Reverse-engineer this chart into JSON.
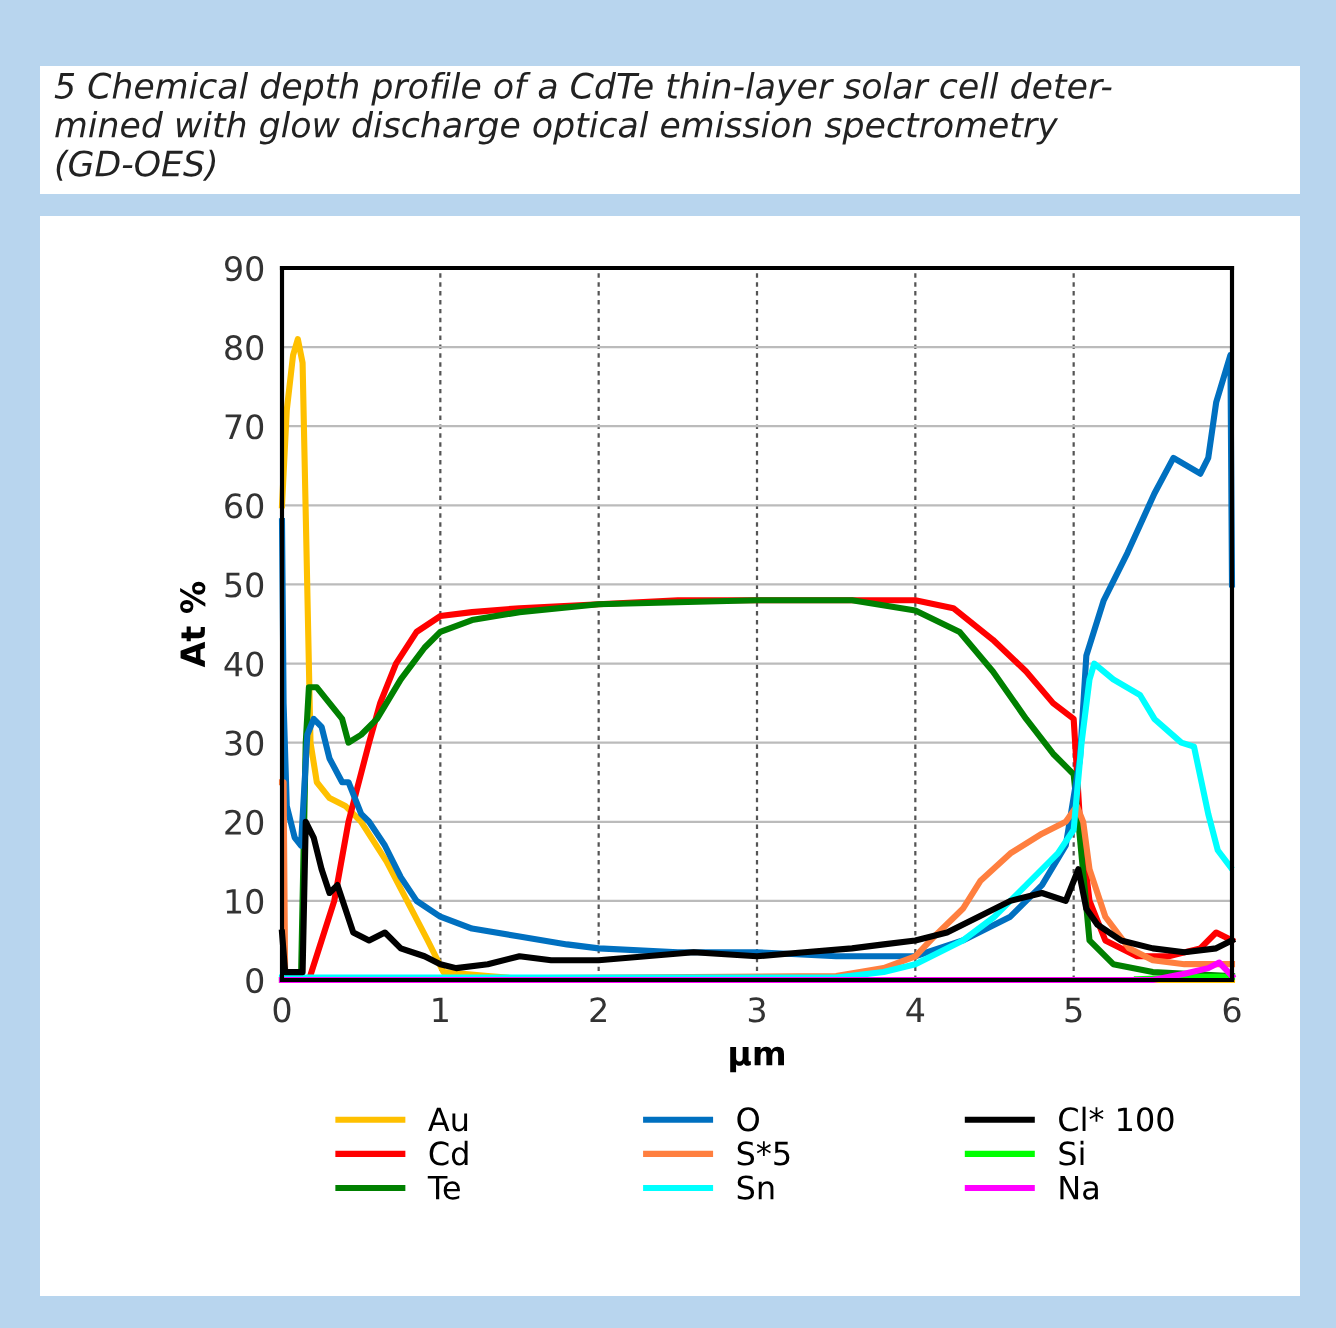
{
  "chart_data": {
    "type": "line",
    "title": "5 Chemical depth profile of a CdTe thin-layer solar cell deter-\nmined with glow discharge optical emission spectrometry\n(GD-OES)",
    "xlabel": "µm",
    "ylabel": "At %",
    "xlim": [
      0,
      6
    ],
    "ylim": [
      0,
      90
    ],
    "xticks": [
      0,
      1,
      2,
      3,
      4,
      5,
      6
    ],
    "yticks": [
      0,
      10,
      20,
      30,
      40,
      50,
      60,
      70,
      80,
      90
    ],
    "grid": true,
    "legend": "bottom",
    "marker": "none",
    "line_style": "solid",
    "series": [
      {
        "name": "Au",
        "color": "#ffc000",
        "x": [
          0,
          0.03,
          0.07,
          0.1,
          0.13,
          0.18,
          0.22,
          0.3,
          0.4,
          0.5,
          0.66,
          0.79,
          0.92,
          1.02,
          1.3,
          1.6,
          6
        ],
        "values": [
          60,
          72,
          79,
          81,
          78,
          30,
          25,
          23,
          22,
          20,
          15,
          10,
          5,
          1,
          0.5,
          0,
          0
        ]
      },
      {
        "name": "Cd",
        "color": "#ff0000",
        "x": [
          0,
          0.17,
          0.25,
          0.33,
          0.42,
          0.55,
          0.62,
          0.72,
          0.85,
          1.0,
          1.2,
          1.5,
          2.0,
          2.5,
          3.0,
          3.5,
          4.0,
          4.24,
          4.49,
          4.7,
          4.87,
          5.0,
          5.04,
          5.1,
          5.2,
          5.4,
          5.6,
          5.8,
          5.9,
          6.0
        ],
        "values": [
          0,
          0,
          5,
          10,
          20,
          30,
          35,
          40,
          44,
          46,
          46.5,
          47,
          47.5,
          48,
          48,
          48,
          48,
          47,
          43,
          39,
          35,
          33,
          20,
          10,
          5,
          3,
          3,
          4,
          6,
          5
        ]
      },
      {
        "name": "Te",
        "color": "#008000",
        "x": [
          0,
          0.12,
          0.15,
          0.17,
          0.22,
          0.3,
          0.38,
          0.42,
          0.5,
          0.6,
          0.75,
          0.9,
          1.0,
          1.2,
          1.5,
          2.0,
          3.0,
          3.6,
          4.0,
          4.28,
          4.49,
          4.7,
          4.87,
          5.0,
          5.03,
          5.1,
          5.25,
          5.5,
          6.0
        ],
        "values": [
          0,
          0,
          30,
          37,
          37,
          35,
          33,
          30,
          31,
          33,
          38,
          42,
          44,
          45.5,
          46.5,
          47.5,
          48,
          48,
          46.7,
          44,
          39,
          33,
          28.6,
          26,
          20,
          5,
          2,
          1,
          0.5
        ]
      },
      {
        "name": "O",
        "color": "#0070c0",
        "x": [
          0,
          0.01,
          0.03,
          0.08,
          0.12,
          0.16,
          0.2,
          0.25,
          0.3,
          0.38,
          0.42,
          0.5,
          0.55,
          0.65,
          0.75,
          0.85,
          1.0,
          1.2,
          1.5,
          1.8,
          2.0,
          2.5,
          3.0,
          3.5,
          4.0,
          4.3,
          4.6,
          4.8,
          4.95,
          5.04,
          5.08,
          5.19,
          5.34,
          5.51,
          5.63,
          5.8,
          5.85,
          5.9,
          5.99,
          6.0
        ],
        "values": [
          58,
          35,
          22,
          18,
          17,
          31,
          33,
          32,
          28,
          25,
          25,
          21,
          20,
          17,
          13,
          10,
          8,
          6.5,
          5.5,
          4.5,
          4,
          3.5,
          3.5,
          3,
          3,
          5,
          8,
          12,
          17,
          28,
          41,
          48,
          54,
          61.5,
          66,
          64,
          66,
          73,
          79,
          50
        ]
      },
      {
        "name": "S*5",
        "color": "#ff7f3f",
        "x": [
          0,
          0.01,
          0.02,
          3.5,
          3.8,
          4.0,
          4.12,
          4.3,
          4.41,
          4.6,
          4.8,
          4.95,
          5.02,
          5.06,
          5.1,
          5.2,
          5.35,
          5.5,
          5.7,
          6.0
        ],
        "values": [
          25,
          25,
          0,
          0.5,
          1.5,
          3,
          5.5,
          9,
          12.5,
          16,
          18.5,
          20,
          22,
          20,
          14,
          8,
          4,
          2.5,
          2,
          2
        ]
      },
      {
        "name": "Sn",
        "color": "#00ffff",
        "x": [
          0,
          3.5,
          3.8,
          4.0,
          4.3,
          4.5,
          4.7,
          4.9,
          5.0,
          5.05,
          5.1,
          5.13,
          5.25,
          5.42,
          5.51,
          5.68,
          5.76,
          5.85,
          5.91,
          5.99
        ],
        "values": [
          0.3,
          0.3,
          1,
          2,
          5,
          8,
          12,
          16,
          19,
          30,
          38,
          40,
          38,
          36,
          33,
          30,
          29.5,
          21,
          16.4,
          14.3
        ]
      },
      {
        "name": "Cl* 100",
        "color": "#000000",
        "x": [
          0,
          0.02,
          0.1,
          0.13,
          0.15,
          0.2,
          0.25,
          0.3,
          0.35,
          0.4,
          0.45,
          0.55,
          0.65,
          0.75,
          0.9,
          1.0,
          1.1,
          1.3,
          1.5,
          1.7,
          2.0,
          2.3,
          2.6,
          3.0,
          3.3,
          3.6,
          3.8,
          4.0,
          4.2,
          4.4,
          4.6,
          4.8,
          4.95,
          5.03,
          5.08,
          5.15,
          5.3,
          5.5,
          5.7,
          5.9,
          6.0
        ],
        "values": [
          6,
          1,
          1,
          1,
          20,
          18,
          14,
          11,
          12,
          9,
          6,
          5,
          6,
          4,
          3,
          2,
          1.5,
          2,
          3,
          2.5,
          2.5,
          3,
          3.5,
          3,
          3.5,
          4,
          4.5,
          5,
          6,
          8,
          10,
          11,
          10,
          14,
          9,
          7,
          5,
          4,
          3.5,
          4,
          5
        ]
      },
      {
        "name": "Si",
        "color": "#00ff00",
        "x": [
          5.4,
          5.8,
          6.0
        ],
        "values": [
          0.1,
          0.4,
          0.4
        ]
      },
      {
        "name": "Na",
        "color": "#ff00ff",
        "x": [
          0,
          5.5,
          5.7,
          5.85,
          5.92,
          6.0
        ],
        "values": [
          0,
          0,
          0.8,
          1.5,
          2.2,
          0.5
        ]
      }
    ]
  }
}
